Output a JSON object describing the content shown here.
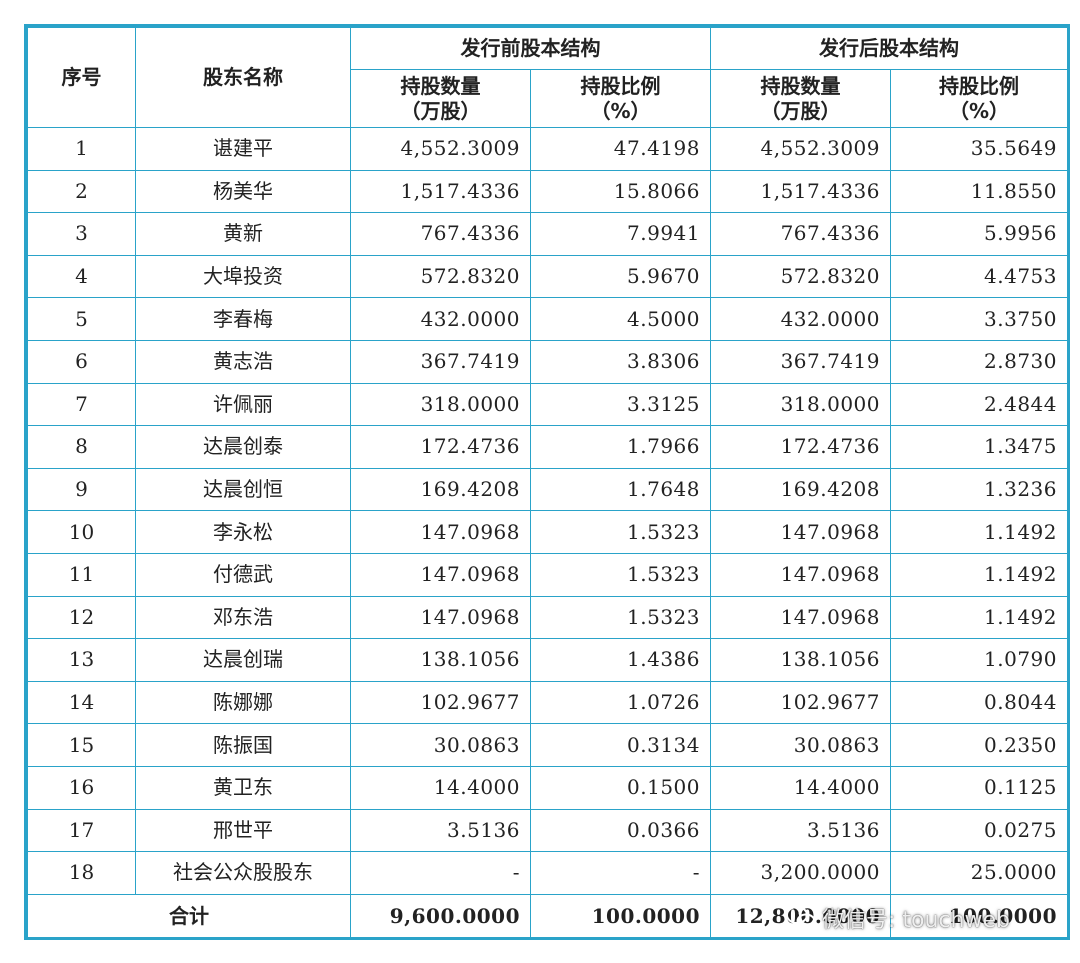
{
  "header": {
    "seq": "序号",
    "name": "股东名称",
    "before_group": "发行前股本结构",
    "after_group": "发行后股本结构",
    "before_shares_line1": "持股数量",
    "before_shares_line2": "（万股）",
    "before_ratio_line1": "持股比例",
    "before_ratio_line2": "（%）",
    "after_shares_line1": "持股数量",
    "after_shares_line2": "（万股）",
    "after_ratio_line1": "持股比例",
    "after_ratio_line2": "（%）"
  },
  "rows": [
    {
      "seq": "1",
      "name": "谌建平",
      "before_shares": "4,552.3009",
      "before_ratio": "47.4198",
      "after_shares": "4,552.3009",
      "after_ratio": "35.5649"
    },
    {
      "seq": "2",
      "name": "杨美华",
      "before_shares": "1,517.4336",
      "before_ratio": "15.8066",
      "after_shares": "1,517.4336",
      "after_ratio": "11.8550"
    },
    {
      "seq": "3",
      "name": "黄新",
      "before_shares": "767.4336",
      "before_ratio": "7.9941",
      "after_shares": "767.4336",
      "after_ratio": "5.9956"
    },
    {
      "seq": "4",
      "name": "大埠投资",
      "before_shares": "572.8320",
      "before_ratio": "5.9670",
      "after_shares": "572.8320",
      "after_ratio": "4.4753"
    },
    {
      "seq": "5",
      "name": "李春梅",
      "before_shares": "432.0000",
      "before_ratio": "4.5000",
      "after_shares": "432.0000",
      "after_ratio": "3.3750"
    },
    {
      "seq": "6",
      "name": "黄志浩",
      "before_shares": "367.7419",
      "before_ratio": "3.8306",
      "after_shares": "367.7419",
      "after_ratio": "2.8730"
    },
    {
      "seq": "7",
      "name": "许佩丽",
      "before_shares": "318.0000",
      "before_ratio": "3.3125",
      "after_shares": "318.0000",
      "after_ratio": "2.4844"
    },
    {
      "seq": "8",
      "name": "达晨创泰",
      "before_shares": "172.4736",
      "before_ratio": "1.7966",
      "after_shares": "172.4736",
      "after_ratio": "1.3475"
    },
    {
      "seq": "9",
      "name": "达晨创恒",
      "before_shares": "169.4208",
      "before_ratio": "1.7648",
      "after_shares": "169.4208",
      "after_ratio": "1.3236"
    },
    {
      "seq": "10",
      "name": "李永松",
      "before_shares": "147.0968",
      "before_ratio": "1.5323",
      "after_shares": "147.0968",
      "after_ratio": "1.1492"
    },
    {
      "seq": "11",
      "name": "付德武",
      "before_shares": "147.0968",
      "before_ratio": "1.5323",
      "after_shares": "147.0968",
      "after_ratio": "1.1492"
    },
    {
      "seq": "12",
      "name": "邓东浩",
      "before_shares": "147.0968",
      "before_ratio": "1.5323",
      "after_shares": "147.0968",
      "after_ratio": "1.1492"
    },
    {
      "seq": "13",
      "name": "达晨创瑞",
      "before_shares": "138.1056",
      "before_ratio": "1.4386",
      "after_shares": "138.1056",
      "after_ratio": "1.0790"
    },
    {
      "seq": "14",
      "name": "陈娜娜",
      "before_shares": "102.9677",
      "before_ratio": "1.0726",
      "after_shares": "102.9677",
      "after_ratio": "0.8044"
    },
    {
      "seq": "15",
      "name": "陈振国",
      "before_shares": "30.0863",
      "before_ratio": "0.3134",
      "after_shares": "30.0863",
      "after_ratio": "0.2350"
    },
    {
      "seq": "16",
      "name": "黄卫东",
      "before_shares": "14.4000",
      "before_ratio": "0.1500",
      "after_shares": "14.4000",
      "after_ratio": "0.1125"
    },
    {
      "seq": "17",
      "name": "邢世平",
      "before_shares": "3.5136",
      "before_ratio": "0.0366",
      "after_shares": "3.5136",
      "after_ratio": "0.0275"
    },
    {
      "seq": "18",
      "name": "社会公众股股东",
      "before_shares": "-",
      "before_ratio": "-",
      "after_shares": "3,200.0000",
      "after_ratio": "25.0000"
    }
  ],
  "total": {
    "label": "合计",
    "before_shares": "9,600.0000",
    "before_ratio": "100.0000",
    "after_shares": "12,800.0000",
    "after_ratio": "100.0000"
  },
  "watermark": {
    "text": "微信号: touchweb",
    "icon": "wechat-icon"
  },
  "colors": {
    "border": "#2aa3c9"
  }
}
